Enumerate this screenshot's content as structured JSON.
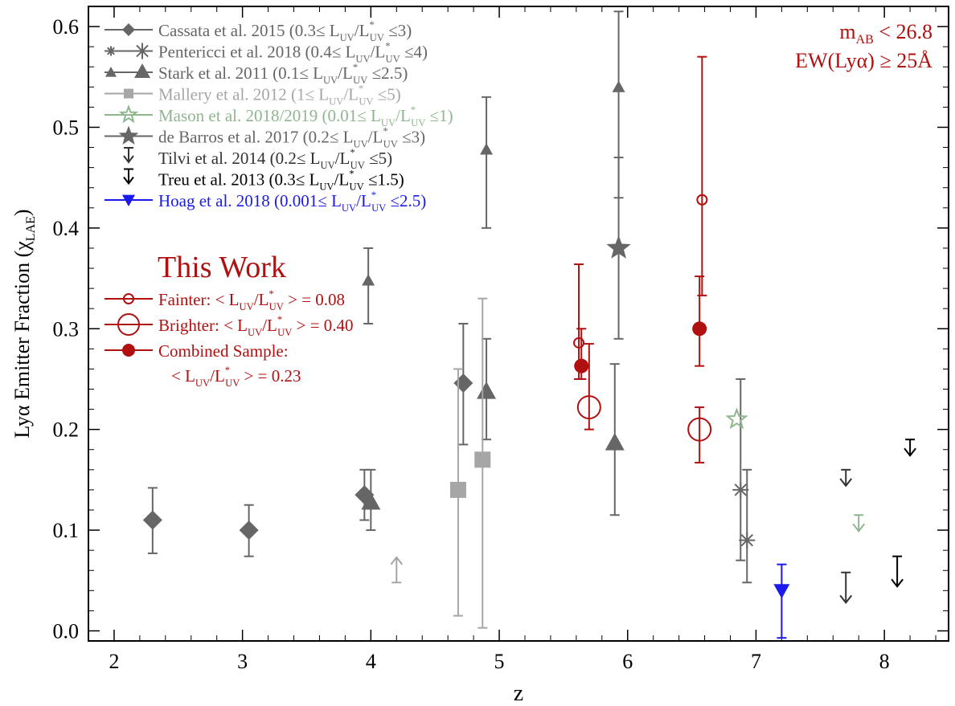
{
  "chart_data": {
    "type": "scatter",
    "title": "",
    "xlabel": "z",
    "ylabel": "Lyα Emitter Fraction (χ",
    "ylabel_sub": "LAE",
    "ylabel_close": ")",
    "xlim": [
      1.8,
      8.5
    ],
    "ylim": [
      -0.01,
      0.62
    ],
    "xticks": [
      2,
      3,
      4,
      5,
      6,
      7,
      8
    ],
    "xtick_labels": [
      "2",
      "3",
      "4",
      "5",
      "6",
      "7",
      "8"
    ],
    "yticks": [
      0.0,
      0.1,
      0.2,
      0.3,
      0.4,
      0.5,
      0.6
    ],
    "ytick_labels": [
      "0.0",
      "0.1",
      "0.2",
      "0.3",
      "0.4",
      "0.5",
      "0.6"
    ],
    "annotation": {
      "line1": "m",
      "line1_sub": "AB",
      "line1_rest": " < 26.8",
      "line2": "EW(Lyα) ≥ 25Å",
      "color": "#b01010"
    },
    "legend": {
      "position": "top-left",
      "this_work_title": "This Work",
      "entries": [
        {
          "id": "cassata",
          "pre": "Cassata et al. 2015 (0.3≤ L",
          "range": "≤3)",
          "color": "#666666"
        },
        {
          "id": "pentericci",
          "pre": "Pentericci et al. 2018 (0.4≤ L",
          "range": "≤4)",
          "color": "#666666"
        },
        {
          "id": "stark",
          "pre": "Stark et al. 2011 (0.1≤ L",
          "range": "≤2.5)",
          "color": "#666666"
        },
        {
          "id": "mallery",
          "pre": "Mallery et al. 2012 (1≤ L",
          "range": "≤5)",
          "color": "#a6a6a6"
        },
        {
          "id": "mason",
          "pre": "Mason et al. 2018/2019 (0.01≤ L",
          "range": "≤1)",
          "color": "#8fb68f"
        },
        {
          "id": "debarros",
          "pre": "de Barros et al. 2017 (0.2≤ L",
          "range": "≤3)",
          "color": "#666666"
        },
        {
          "id": "tilvi",
          "pre": "Tilvi et al. 2014 (0.2≤ L",
          "range": "≤5)",
          "color": "#333333"
        },
        {
          "id": "treu",
          "pre": "Treu et al. 2013 (0.3≤ L",
          "range": "≤1.5)",
          "color": "#000000"
        },
        {
          "id": "hoag",
          "pre": "Hoag et al. 2018 (0.001≤ L",
          "range": "≤2.5)",
          "color": "#1a1aee"
        }
      ],
      "this_work_entries": [
        {
          "id": "fainter",
          "text": "Fainter: < L",
          "value": "> = 0.08",
          "color": "#b01010"
        },
        {
          "id": "brighter",
          "text": "Brighter: < L",
          "value": "> = 0.40",
          "color": "#b01010"
        },
        {
          "id": "combined",
          "text": "Combined Sample:",
          "color": "#b01010"
        }
      ],
      "combined_second_line": "< L",
      "combined_value": "> = 0.23"
    },
    "series": [
      {
        "name": "Cassata et al. 2015",
        "marker": "diamond",
        "color": "#666666",
        "size": 12,
        "points": [
          {
            "x": 2.3,
            "y": 0.11,
            "lo": 0.077,
            "hi": 0.142
          },
          {
            "x": 3.05,
            "y": 0.1,
            "lo": 0.074,
            "hi": 0.125
          },
          {
            "x": 3.95,
            "y": 0.135,
            "lo": 0.11,
            "hi": 0.16
          },
          {
            "x": 4.72,
            "y": 0.246,
            "lo": 0.185,
            "hi": 0.305
          }
        ]
      },
      {
        "name": "Pentericci et al. 2018",
        "marker": "asterisk",
        "color": "#666666",
        "size": 10,
        "points": [
          {
            "x": 6.88,
            "y": 0.14,
            "lo": 0.07,
            "hi": 0.25
          },
          {
            "x": 6.93,
            "y": 0.09,
            "lo": 0.048,
            "hi": 0.16
          }
        ]
      },
      {
        "name": "Stark et al. 2011",
        "marker": "triangle",
        "color": "#666666",
        "size": 12,
        "points": [
          {
            "x": 4.0,
            "y": 0.128,
            "lo": 0.1,
            "hi": 0.16
          },
          {
            "x": 4.9,
            "y": 0.238,
            "lo": 0.19,
            "hi": 0.29
          },
          {
            "x": 5.9,
            "y": 0.187,
            "lo": 0.115,
            "hi": 0.265
          }
        ]
      },
      {
        "name": "Stark et al. 2011 (small)",
        "marker": "triangle",
        "color": "#666666",
        "size": 8,
        "points": [
          {
            "x": 3.98,
            "y": 0.348,
            "lo": 0.305,
            "hi": 0.38
          },
          {
            "x": 4.9,
            "y": 0.478,
            "lo": 0.4,
            "hi": 0.53
          },
          {
            "x": 5.93,
            "y": 0.54,
            "lo": 0.43,
            "hi": 0.615
          }
        ]
      },
      {
        "name": "Mallery et al. 2012",
        "marker": "square",
        "color": "#a6a6a6",
        "size": 10,
        "points": [
          {
            "x": 4.68,
            "y": 0.14,
            "lo": 0.015,
            "hi": 0.26
          },
          {
            "x": 4.87,
            "y": 0.17,
            "lo": 0.003,
            "hi": 0.33
          }
        ]
      },
      {
        "name": "Mason et al. 2018/2019",
        "marker": "star-open",
        "color": "#8fb68f",
        "size": 12,
        "points": [
          {
            "x": 6.85,
            "y": 0.21
          }
        ]
      },
      {
        "name": "de Barros et al. 2017",
        "marker": "star",
        "color": "#666666",
        "size": 16,
        "points": [
          {
            "x": 5.93,
            "y": 0.38,
            "lo": 0.29,
            "hi": 0.47
          }
        ]
      },
      {
        "name": "Fainter",
        "marker": "circle-open",
        "color": "#b01010",
        "size": 6,
        "points": [
          {
            "x": 5.62,
            "y": 0.286,
            "lo": 0.25,
            "hi": 0.364
          },
          {
            "x": 6.58,
            "y": 0.428,
            "lo": 0.333,
            "hi": 0.57
          }
        ]
      },
      {
        "name": "Brighter",
        "marker": "circle-open",
        "color": "#b01010",
        "size": 14,
        "points": [
          {
            "x": 5.7,
            "y": 0.222,
            "lo": 0.2,
            "hi": 0.285
          },
          {
            "x": 6.56,
            "y": 0.2,
            "lo": 0.167,
            "hi": 0.222
          }
        ]
      },
      {
        "name": "Combined Sample",
        "marker": "circle",
        "color": "#b01010",
        "size": 9,
        "points": [
          {
            "x": 5.64,
            "y": 0.263,
            "lo": 0.25,
            "hi": 0.3
          },
          {
            "x": 6.56,
            "y": 0.3,
            "lo": 0.263,
            "hi": 0.352
          }
        ]
      },
      {
        "name": "Hoag et al. 2018",
        "marker": "triangle-down",
        "color": "#1a1aee",
        "size": 10,
        "points": [
          {
            "x": 7.2,
            "y": 0.04,
            "lo": -0.007,
            "hi": 0.066
          }
        ]
      }
    ],
    "limits": [
      {
        "x": 4.2,
        "y": 0.048,
        "dir": "up",
        "color": "#a6a6a6",
        "len": 0.025
      },
      {
        "x": 7.7,
        "y": 0.16,
        "dir": "down",
        "color": "#333333",
        "len": 0.016
      },
      {
        "x": 8.2,
        "y": 0.19,
        "dir": "down",
        "color": "#000000",
        "len": 0.016
      },
      {
        "x": 7.8,
        "y": 0.115,
        "dir": "down",
        "color": "#8fb68f",
        "len": 0.016
      },
      {
        "x": 7.7,
        "y": 0.058,
        "dir": "down",
        "color": "#333333",
        "len": 0.03
      },
      {
        "x": 8.1,
        "y": 0.074,
        "dir": "down",
        "color": "#000000",
        "len": 0.03
      }
    ]
  }
}
